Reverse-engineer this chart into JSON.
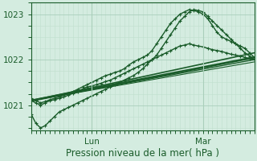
{
  "bg_color": "#d4ece0",
  "plot_bg_color": "#d4ece0",
  "grid_color_major": "#aacfbb",
  "grid_color_minor": "#c0dece",
  "line_color": "#1a5c2a",
  "xlabel": "Pression niveau de la mer( hPa )",
  "xlabel_fontsize": 8.5,
  "tick_fontsize": 7.5,
  "ylim": [
    1020.45,
    1023.25
  ],
  "yticks": [
    1021,
    1022,
    1023
  ],
  "xlim": [
    0,
    48
  ],
  "x_lun": 13,
  "x_mar": 37,
  "straight_lines": [
    {
      "x": [
        0,
        48
      ],
      "y": [
        1021.1,
        1022.05
      ],
      "lw": 2.0
    },
    {
      "x": [
        0,
        48
      ],
      "y": [
        1021.1,
        1022.15
      ],
      "lw": 1.2
    },
    {
      "x": [
        0,
        48
      ],
      "y": [
        1021.1,
        1022.0
      ],
      "lw": 1.0
    },
    {
      "x": [
        0,
        48
      ],
      "y": [
        1021.1,
        1021.95
      ],
      "lw": 0.8
    }
  ],
  "series_marked": [
    {
      "x": [
        0,
        1,
        2,
        3,
        4,
        5,
        6,
        7,
        8,
        9,
        10,
        11,
        12,
        13,
        14,
        15,
        16,
        17,
        18,
        19,
        20,
        21,
        22,
        23,
        24,
        25,
        26,
        27,
        28,
        29,
        30,
        31,
        32,
        33,
        34,
        35,
        36,
        37,
        38,
        39,
        40,
        41,
        42,
        43,
        44,
        45,
        46,
        47,
        48
      ],
      "y": [
        1021.1,
        1021.05,
        1021.0,
        1021.05,
        1021.1,
        1021.12,
        1021.15,
        1021.18,
        1021.22,
        1021.26,
        1021.3,
        1021.35,
        1021.4,
        1021.42,
        1021.45,
        1021.48,
        1021.52,
        1021.55,
        1021.6,
        1021.65,
        1021.7,
        1021.75,
        1021.8,
        1021.85,
        1021.9,
        1021.95,
        1022.0,
        1022.05,
        1022.1,
        1022.15,
        1022.2,
        1022.25,
        1022.3,
        1022.32,
        1022.35,
        1022.32,
        1022.3,
        1022.28,
        1022.25,
        1022.22,
        1022.2,
        1022.18,
        1022.15,
        1022.12,
        1022.1,
        1022.08,
        1022.05,
        1022.02,
        1022.0
      ],
      "lw": 1.0,
      "marker": "+",
      "ms": 3,
      "mew": 0.8
    },
    {
      "x": [
        0,
        1,
        2,
        3,
        4,
        5,
        6,
        7,
        8,
        9,
        10,
        11,
        12,
        13,
        14,
        15,
        16,
        17,
        18,
        19,
        20,
        21,
        22,
        23,
        24,
        25,
        26,
        27,
        28,
        29,
        30,
        31,
        32,
        33,
        34,
        35,
        36,
        37,
        38,
        39,
        40,
        41,
        42,
        43,
        44,
        45,
        46,
        47,
        48
      ],
      "y": [
        1020.8,
        1020.6,
        1020.5,
        1020.55,
        1020.65,
        1020.75,
        1020.85,
        1020.9,
        1020.95,
        1021.0,
        1021.05,
        1021.1,
        1021.15,
        1021.2,
        1021.25,
        1021.3,
        1021.35,
        1021.4,
        1021.45,
        1021.5,
        1021.55,
        1021.6,
        1021.65,
        1021.72,
        1021.8,
        1021.9,
        1022.0,
        1022.1,
        1022.25,
        1022.4,
        1022.55,
        1022.7,
        1022.85,
        1022.95,
        1023.05,
        1023.1,
        1023.08,
        1023.05,
        1022.95,
        1022.85,
        1022.75,
        1022.65,
        1022.55,
        1022.45,
        1022.35,
        1022.25,
        1022.15,
        1022.08,
        1022.0
      ],
      "lw": 1.0,
      "marker": "+",
      "ms": 3,
      "mew": 0.8
    },
    {
      "x": [
        0,
        1,
        2,
        3,
        4,
        5,
        6,
        7,
        8,
        9,
        10,
        11,
        12,
        13,
        14,
        15,
        16,
        17,
        18,
        19,
        20,
        21,
        22,
        23,
        24,
        25,
        26,
        27,
        28,
        29,
        30,
        31,
        32,
        33,
        34,
        35,
        36,
        37,
        38,
        39,
        40,
        41,
        42,
        43,
        44,
        45,
        46,
        47,
        48
      ],
      "y": [
        1021.15,
        1021.1,
        1021.05,
        1021.08,
        1021.12,
        1021.15,
        1021.18,
        1021.22,
        1021.26,
        1021.3,
        1021.35,
        1021.4,
        1021.45,
        1021.5,
        1021.55,
        1021.6,
        1021.65,
        1021.68,
        1021.72,
        1021.75,
        1021.8,
        1021.88,
        1021.95,
        1022.0,
        1022.05,
        1022.1,
        1022.2,
        1022.35,
        1022.5,
        1022.65,
        1022.8,
        1022.9,
        1023.0,
        1023.05,
        1023.1,
        1023.08,
        1023.05,
        1023.0,
        1022.9,
        1022.75,
        1022.6,
        1022.5,
        1022.45,
        1022.4,
        1022.35,
        1022.3,
        1022.25,
        1022.15,
        1022.05
      ],
      "lw": 1.0,
      "marker": "+",
      "ms": 3,
      "mew": 0.8
    }
  ]
}
